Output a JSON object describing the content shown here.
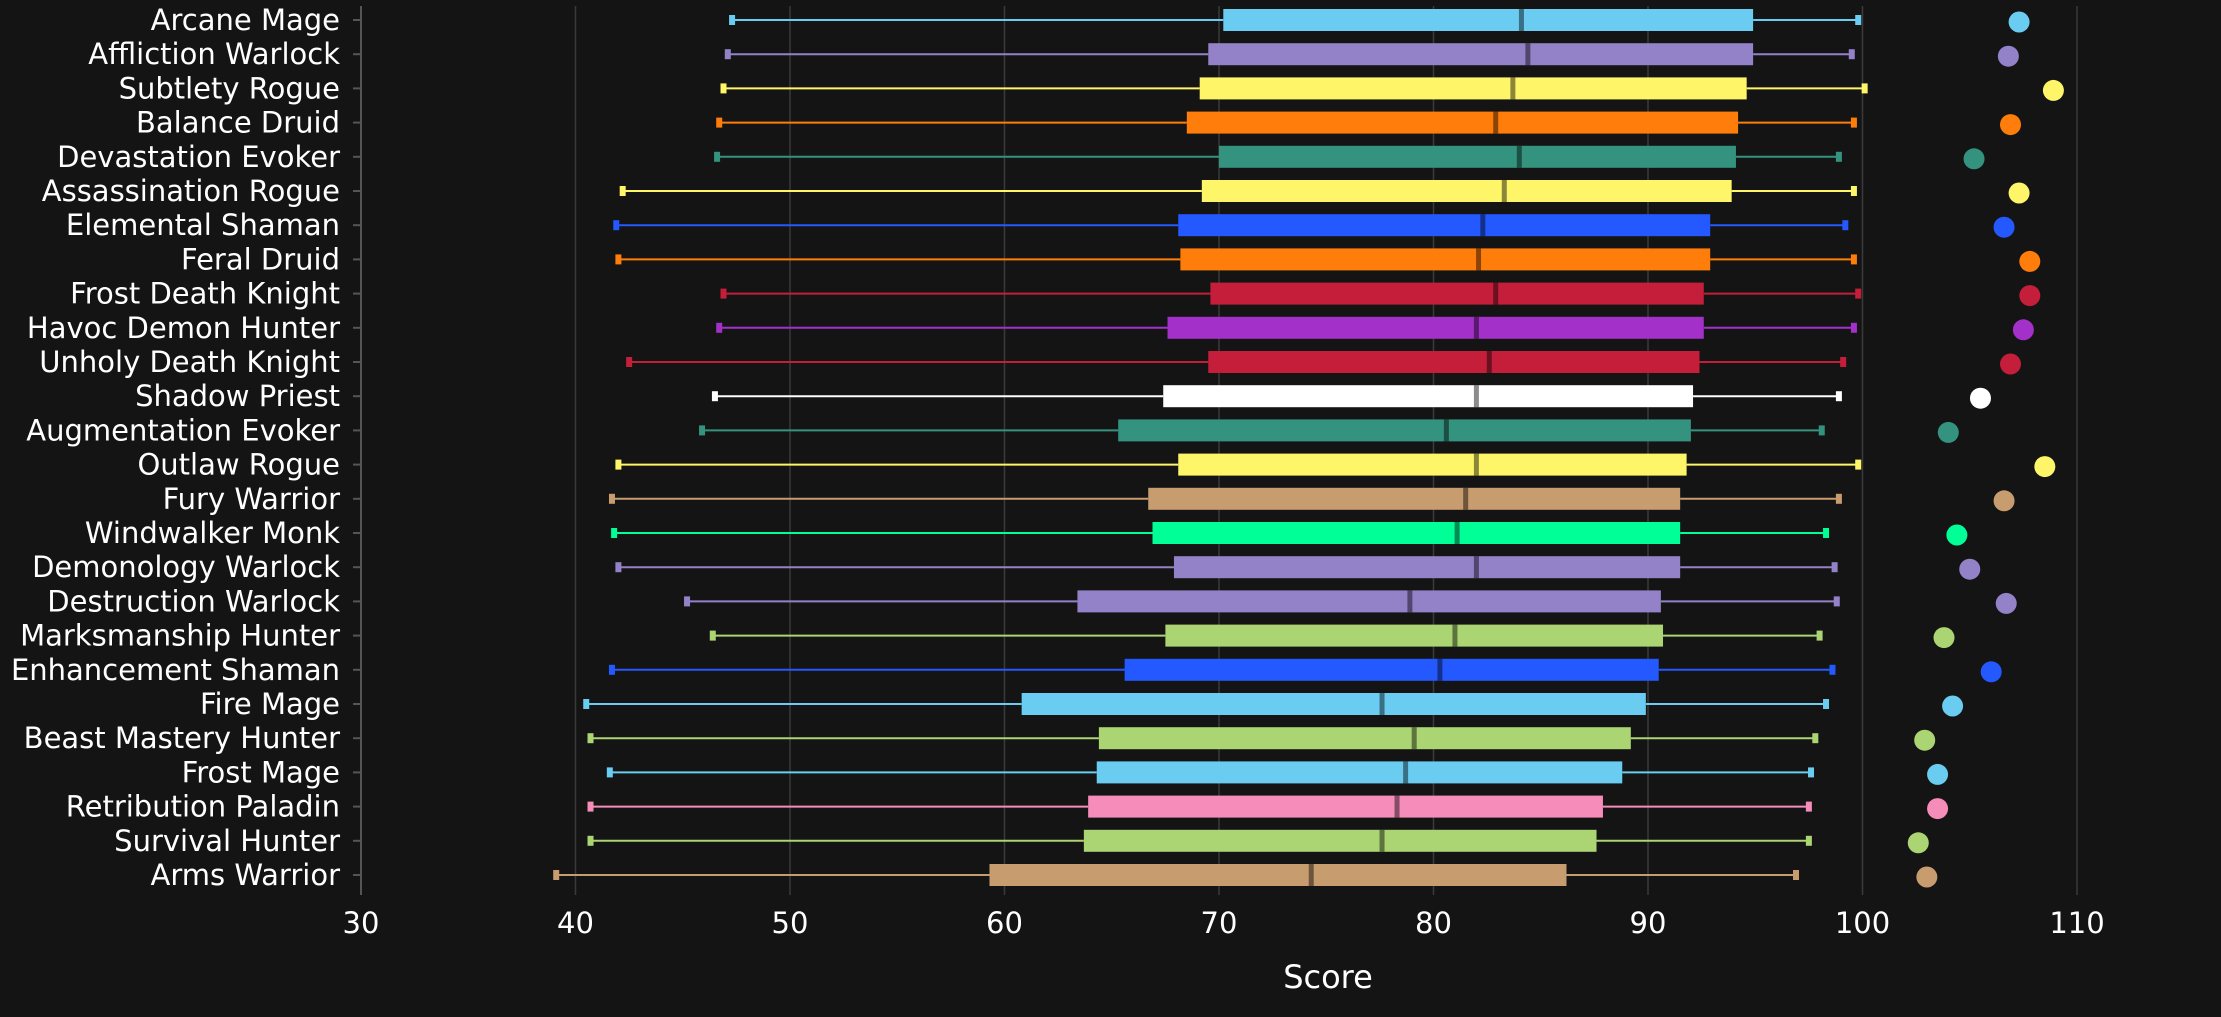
{
  "chart_data": {
    "type": "box",
    "xlabel": "Score",
    "xlim": [
      30,
      114
    ],
    "xticks": [
      30,
      40,
      50,
      60,
      70,
      80,
      90,
      100,
      110
    ],
    "grid": "vertical",
    "legend": "none",
    "series": [
      {
        "name": "Arcane Mage",
        "color": "#69CCF0",
        "min": 47.3,
        "q1": 70.2,
        "median": 84.1,
        "q3": 94.9,
        "max": 99.8,
        "top": 107.3
      },
      {
        "name": "Affliction Warlock",
        "color": "#9482C9",
        "min": 47.1,
        "q1": 69.5,
        "median": 84.4,
        "q3": 94.9,
        "max": 99.5,
        "top": 106.8
      },
      {
        "name": "Subtlety Rogue",
        "color": "#FFF569",
        "min": 46.9,
        "q1": 69.1,
        "median": 83.7,
        "q3": 94.6,
        "max": 100.1,
        "top": 108.9
      },
      {
        "name": "Balance Druid",
        "color": "#FF7D0A",
        "min": 46.7,
        "q1": 68.5,
        "median": 82.9,
        "q3": 94.2,
        "max": 99.6,
        "top": 106.9
      },
      {
        "name": "Devastation Evoker",
        "color": "#33937F",
        "min": 46.6,
        "q1": 70.0,
        "median": 84.0,
        "q3": 94.1,
        "max": 98.9,
        "top": 105.2
      },
      {
        "name": "Assassination Rogue",
        "color": "#FFF569",
        "min": 42.2,
        "q1": 69.2,
        "median": 83.3,
        "q3": 93.9,
        "max": 99.6,
        "top": 107.3
      },
      {
        "name": "Elemental Shaman",
        "color": "#2459FF",
        "min": 41.9,
        "q1": 68.1,
        "median": 82.3,
        "q3": 92.9,
        "max": 99.2,
        "top": 106.6
      },
      {
        "name": "Feral Druid",
        "color": "#FF7D0A",
        "min": 42.0,
        "q1": 68.2,
        "median": 82.1,
        "q3": 92.9,
        "max": 99.6,
        "top": 107.8
      },
      {
        "name": "Frost Death Knight",
        "color": "#C41E3A",
        "min": 46.9,
        "q1": 69.6,
        "median": 82.9,
        "q3": 92.6,
        "max": 99.8,
        "top": 107.8
      },
      {
        "name": "Havoc Demon Hunter",
        "color": "#A330C9",
        "min": 46.7,
        "q1": 67.6,
        "median": 82.0,
        "q3": 92.6,
        "max": 99.6,
        "top": 107.5
      },
      {
        "name": "Unholy Death Knight",
        "color": "#C41E3A",
        "min": 42.5,
        "q1": 69.5,
        "median": 82.6,
        "q3": 92.4,
        "max": 99.1,
        "top": 106.9
      },
      {
        "name": "Shadow Priest",
        "color": "#FFFFFF",
        "min": 46.5,
        "q1": 67.4,
        "median": 82.0,
        "q3": 92.1,
        "max": 98.9,
        "top": 105.5
      },
      {
        "name": "Augmentation Evoker",
        "color": "#33937F",
        "min": 45.9,
        "q1": 65.3,
        "median": 80.6,
        "q3": 92.0,
        "max": 98.1,
        "top": 104.0
      },
      {
        "name": "Outlaw Rogue",
        "color": "#FFF569",
        "min": 42.0,
        "q1": 68.1,
        "median": 82.0,
        "q3": 91.8,
        "max": 99.8,
        "top": 108.5
      },
      {
        "name": "Fury Warrior",
        "color": "#C79C6E",
        "min": 41.7,
        "q1": 66.7,
        "median": 81.5,
        "q3": 91.5,
        "max": 98.9,
        "top": 106.6
      },
      {
        "name": "Windwalker Monk",
        "color": "#00FF96",
        "min": 41.8,
        "q1": 66.9,
        "median": 81.1,
        "q3": 91.5,
        "max": 98.3,
        "top": 104.4
      },
      {
        "name": "Demonology Warlock",
        "color": "#9482C9",
        "min": 42.0,
        "q1": 67.9,
        "median": 82.0,
        "q3": 91.5,
        "max": 98.7,
        "top": 105.0
      },
      {
        "name": "Destruction Warlock",
        "color": "#9482C9",
        "min": 45.2,
        "q1": 63.4,
        "median": 78.9,
        "q3": 90.6,
        "max": 98.8,
        "top": 106.7
      },
      {
        "name": "Marksmanship Hunter",
        "color": "#ABD473",
        "min": 46.4,
        "q1": 67.5,
        "median": 81.0,
        "q3": 90.7,
        "max": 98.0,
        "top": 103.8
      },
      {
        "name": "Enhancement Shaman",
        "color": "#2459FF",
        "min": 41.7,
        "q1": 65.6,
        "median": 80.3,
        "q3": 90.5,
        "max": 98.6,
        "top": 106.0
      },
      {
        "name": "Fire Mage",
        "color": "#69CCF0",
        "min": 40.5,
        "q1": 60.8,
        "median": 77.6,
        "q3": 89.9,
        "max": 98.3,
        "top": 104.2
      },
      {
        "name": "Beast Mastery Hunter",
        "color": "#ABD473",
        "min": 40.7,
        "q1": 64.4,
        "median": 79.1,
        "q3": 89.2,
        "max": 97.8,
        "top": 102.9
      },
      {
        "name": "Frost Mage",
        "color": "#69CCF0",
        "min": 41.6,
        "q1": 64.3,
        "median": 78.7,
        "q3": 88.8,
        "max": 97.6,
        "top": 103.5
      },
      {
        "name": "Retribution Paladin",
        "color": "#F58CBA",
        "min": 40.7,
        "q1": 63.9,
        "median": 78.3,
        "q3": 87.9,
        "max": 97.5,
        "top": 103.5
      },
      {
        "name": "Survival Hunter",
        "color": "#ABD473",
        "min": 40.7,
        "q1": 63.7,
        "median": 77.6,
        "q3": 87.6,
        "max": 97.5,
        "top": 102.6
      },
      {
        "name": "Arms Warrior",
        "color": "#C79C6E",
        "min": 39.1,
        "q1": 59.3,
        "median": 74.3,
        "q3": 86.2,
        "max": 96.9,
        "top": 103.0
      }
    ]
  }
}
